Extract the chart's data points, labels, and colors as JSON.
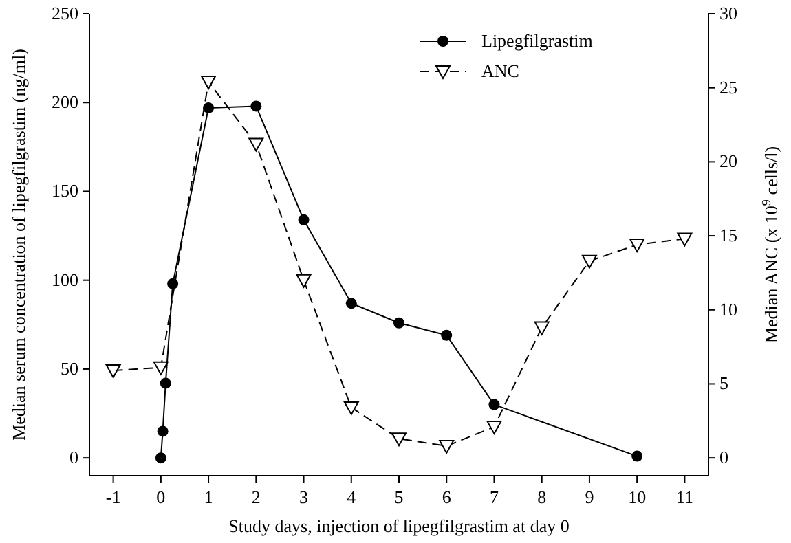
{
  "chart_data": {
    "type": "line",
    "xlabel": "Study days, injection of lipegfilgrastim at day 0",
    "ylabel": "Median serum concentration of lipegfilgrastim (ng/ml)",
    "y2label": "Median ANC (x 10$^{9}$ cells/l)",
    "xlim": [
      -1.5,
      11.5
    ],
    "xticks": [
      -1,
      0,
      1,
      2,
      3,
      4,
      5,
      6,
      7,
      8,
      9,
      10,
      11
    ],
    "ylim": [
      -10,
      250
    ],
    "yticks": [
      0,
      50,
      100,
      150,
      200,
      250
    ],
    "y2lim": [
      -1.2,
      30
    ],
    "y2ticks": [
      0,
      5,
      10,
      15,
      20,
      25,
      30
    ],
    "grid": false,
    "legend": "top right",
    "series": [
      {
        "name": "Lipegfilgrastim",
        "color": "#000000",
        "marker": "circle",
        "line_style": "solid",
        "x": [
          0,
          0.04,
          0.1,
          0.25,
          1,
          2,
          3,
          4,
          5,
          6,
          7,
          10
        ],
        "values": [
          0,
          15,
          42,
          98,
          197,
          198,
          134,
          87,
          76,
          69,
          30,
          1
        ]
      },
      {
        "name": "ANC",
        "color": "#000000",
        "marker": "triangle",
        "line_style": "dashed",
        "axis": "y2",
        "x": [
          -1,
          0,
          1,
          2,
          3,
          4,
          5,
          6,
          7,
          8,
          9,
          10,
          11
        ],
        "values": [
          5.9,
          6.1,
          25.4,
          21.2,
          12,
          3.4,
          1.3,
          0.8,
          2.1,
          8.8,
          13.3,
          14.4,
          14.8
        ]
      }
    ]
  }
}
